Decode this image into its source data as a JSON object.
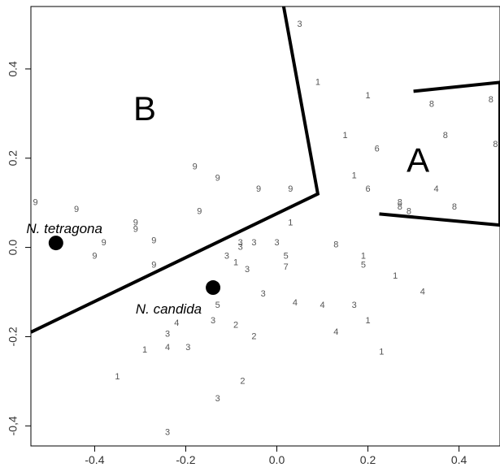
{
  "chart_data": {
    "type": "scatter",
    "xlim": [
      -0.54,
      0.49
    ],
    "ylim": [
      -0.445,
      0.54
    ],
    "x_ticks": [
      -0.4,
      -0.2,
      0.0,
      0.2,
      0.4
    ],
    "x_tick_labels": [
      "-0.4",
      "-0.2",
      "0.0",
      "0.2",
      "0.4"
    ],
    "y_ticks": [
      -0.4,
      -0.2,
      0.0,
      0.2,
      0.4
    ],
    "y_tick_labels": [
      "-0,4",
      "-0.2",
      "0.0",
      "0.2",
      "0.4"
    ],
    "points": [
      {
        "x": 0.05,
        "y": 0.5,
        "label": "3"
      },
      {
        "x": 0.09,
        "y": 0.37,
        "label": "1"
      },
      {
        "x": 0.2,
        "y": 0.34,
        "label": "1"
      },
      {
        "x": 0.15,
        "y": 0.25,
        "label": "1"
      },
      {
        "x": 0.22,
        "y": 0.22,
        "label": "6"
      },
      {
        "x": 0.17,
        "y": 0.16,
        "label": "1"
      },
      {
        "x": 0.2,
        "y": 0.13,
        "label": "6"
      },
      {
        "x": 0.34,
        "y": 0.32,
        "label": "8"
      },
      {
        "x": 0.47,
        "y": 0.33,
        "label": "8"
      },
      {
        "x": 0.37,
        "y": 0.25,
        "label": "8"
      },
      {
        "x": 0.48,
        "y": 0.23,
        "label": "8"
      },
      {
        "x": 0.27,
        "y": 0.1,
        "label": "8"
      },
      {
        "x": 0.27,
        "y": 0.09,
        "label": "8"
      },
      {
        "x": 0.29,
        "y": 0.08,
        "label": "8"
      },
      {
        "x": 0.35,
        "y": 0.13,
        "label": "4"
      },
      {
        "x": 0.39,
        "y": 0.09,
        "label": "8"
      },
      {
        "x": -0.53,
        "y": 0.1,
        "label": "9"
      },
      {
        "x": -0.44,
        "y": 0.085,
        "label": "9"
      },
      {
        "x": -0.31,
        "y": 0.055,
        "label": "9"
      },
      {
        "x": -0.31,
        "y": 0.04,
        "label": "9"
      },
      {
        "x": -0.38,
        "y": 0.01,
        "label": "9"
      },
      {
        "x": -0.27,
        "y": 0.015,
        "label": "9"
      },
      {
        "x": -0.4,
        "y": -0.02,
        "label": "9"
      },
      {
        "x": -0.27,
        "y": -0.04,
        "label": "9"
      },
      {
        "x": -0.18,
        "y": 0.18,
        "label": "9"
      },
      {
        "x": -0.13,
        "y": 0.155,
        "label": "9"
      },
      {
        "x": -0.04,
        "y": 0.13,
        "label": "9"
      },
      {
        "x": 0.03,
        "y": 0.13,
        "label": "9"
      },
      {
        "x": -0.17,
        "y": 0.08,
        "label": "9"
      },
      {
        "x": 0.03,
        "y": 0.055,
        "label": "1"
      },
      {
        "x": -0.08,
        "y": 0.01,
        "label": "3"
      },
      {
        "x": -0.08,
        "y": 0.0,
        "label": "3"
      },
      {
        "x": -0.05,
        "y": 0.01,
        "label": "3"
      },
      {
        "x": 0.0,
        "y": 0.01,
        "label": "3"
      },
      {
        "x": 0.13,
        "y": 0.005,
        "label": "8"
      },
      {
        "x": -0.11,
        "y": -0.02,
        "label": "3"
      },
      {
        "x": -0.09,
        "y": -0.035,
        "label": "1"
      },
      {
        "x": -0.065,
        "y": -0.05,
        "label": "3"
      },
      {
        "x": 0.02,
        "y": -0.02,
        "label": "5"
      },
      {
        "x": 0.02,
        "y": -0.045,
        "label": "7"
      },
      {
        "x": 0.19,
        "y": -0.02,
        "label": "1"
      },
      {
        "x": 0.19,
        "y": -0.04,
        "label": "5"
      },
      {
        "x": 0.26,
        "y": -0.065,
        "label": "1"
      },
      {
        "x": -0.03,
        "y": -0.105,
        "label": "3"
      },
      {
        "x": -0.13,
        "y": -0.13,
        "label": "5"
      },
      {
        "x": 0.04,
        "y": -0.125,
        "label": "4"
      },
      {
        "x": 0.1,
        "y": -0.13,
        "label": "4"
      },
      {
        "x": 0.17,
        "y": -0.13,
        "label": "3"
      },
      {
        "x": 0.32,
        "y": -0.1,
        "label": "4"
      },
      {
        "x": -0.22,
        "y": -0.17,
        "label": "4"
      },
      {
        "x": -0.14,
        "y": -0.165,
        "label": "3"
      },
      {
        "x": -0.09,
        "y": -0.175,
        "label": "2"
      },
      {
        "x": -0.05,
        "y": -0.2,
        "label": "2"
      },
      {
        "x": 0.13,
        "y": -0.19,
        "label": "4"
      },
      {
        "x": 0.2,
        "y": -0.165,
        "label": "1"
      },
      {
        "x": -0.24,
        "y": -0.195,
        "label": "3"
      },
      {
        "x": -0.24,
        "y": -0.225,
        "label": "4"
      },
      {
        "x": -0.195,
        "y": -0.225,
        "label": "3"
      },
      {
        "x": -0.29,
        "y": -0.23,
        "label": "1"
      },
      {
        "x": 0.23,
        "y": -0.235,
        "label": "1"
      },
      {
        "x": -0.35,
        "y": -0.29,
        "label": "1"
      },
      {
        "x": -0.075,
        "y": -0.3,
        "label": "2"
      },
      {
        "x": -0.13,
        "y": -0.34,
        "label": "3"
      },
      {
        "x": -0.24,
        "y": -0.415,
        "label": "3"
      }
    ],
    "regions": [
      {
        "label": "A",
        "label_x": 0.31,
        "label_y": 0.19,
        "vertices": [
          [
            0.3,
            0.35
          ],
          [
            0.49,
            0.37
          ],
          [
            0.49,
            0.05
          ],
          [
            0.225,
            0.075
          ]
        ]
      },
      {
        "label": "B",
        "label_x": -0.29,
        "label_y": 0.305,
        "vertices": [
          [
            0.015,
            0.54
          ],
          [
            0.09,
            0.12
          ],
          [
            -0.54,
            -0.19
          ]
        ]
      }
    ],
    "species": [
      {
        "name": "N. tetragona",
        "x": -0.485,
        "y": 0.01,
        "label_x": -0.55,
        "label_y": 0.04
      },
      {
        "name": "N. candida",
        "x": -0.14,
        "y": -0.09,
        "label_x": -0.31,
        "label_y": -0.14
      }
    ]
  }
}
